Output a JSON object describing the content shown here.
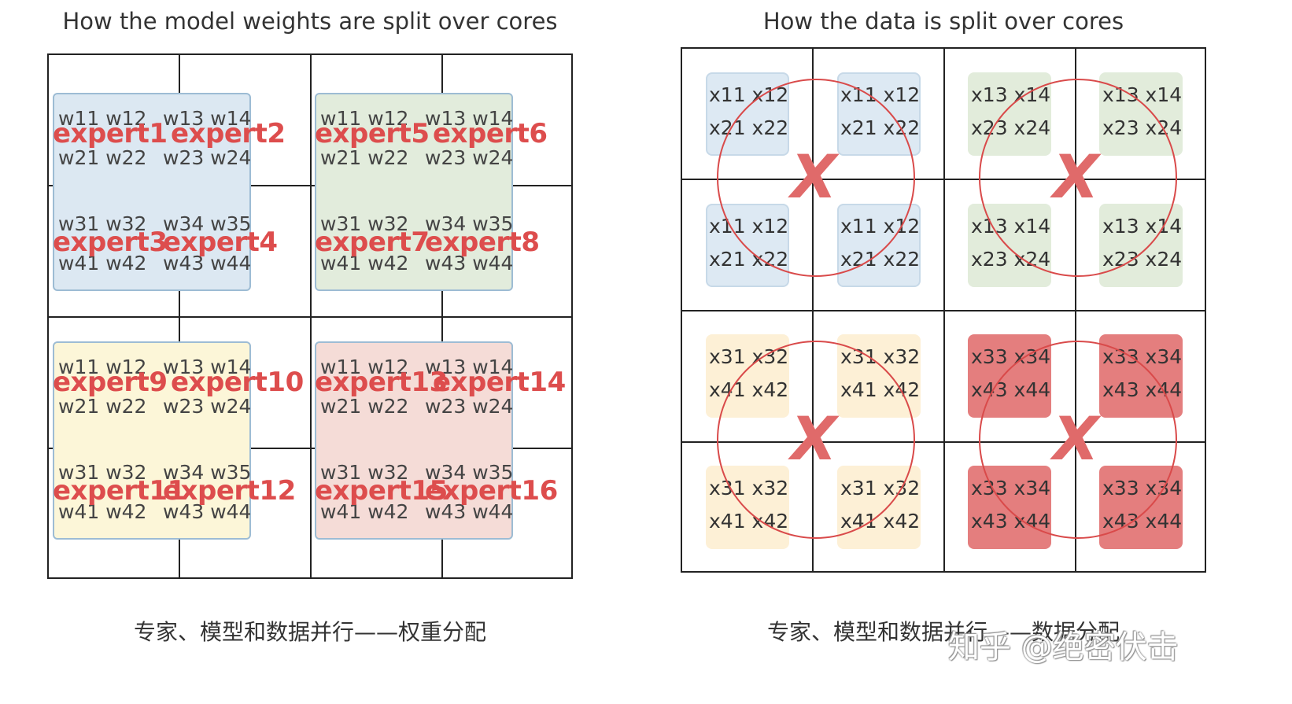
{
  "left": {
    "title": "How the model weights are split over cores",
    "caption": "专家、模型和数据并行——权重分配",
    "blocks": [
      {
        "color": "#dce8f2",
        "tl": "w11 w12",
        "tr": "w13 w14",
        "bl": "w21 w22",
        "br": "w23 w24",
        "e1": "expert1",
        "e2": "expert2",
        "tl2": "w31 w32",
        "tr2": "w34 w35",
        "bl2": "w41 w42",
        "br2": "w43 w44",
        "e3": "expert3",
        "e4": "expert4"
      },
      {
        "color": "#e2ecdc",
        "tl": "w11 w12",
        "tr": "w13 w14",
        "bl": "w21 w22",
        "br": "w23 w24",
        "e1": "expert5",
        "e2": "expert6",
        "tl2": "w31 w32",
        "tr2": "w34 w35",
        "bl2": "w41 w42",
        "br2": "w43 w44",
        "e3": "expert7",
        "e4": "expert8"
      },
      {
        "color": "#fcf6d8",
        "tl": "w11 w12",
        "tr": "w13 w14",
        "bl": "w21 w22",
        "br": "w23 w24",
        "e1": "expert9",
        "e2": "expert10",
        "tl2": "w31 w32",
        "tr2": "w34 w35",
        "bl2": "w41 w42",
        "br2": "w43 w44",
        "e3": "expert11",
        "e4": "expert12"
      },
      {
        "color": "#f5dcd7",
        "tl": "w11 w12",
        "tr": "w13 w14",
        "bl": "w21 w22",
        "br": "w23 w24",
        "e1": "expert13",
        "e2": "expert14",
        "tl2": "w31 w32",
        "tr2": "w34 w35",
        "bl2": "w41 w42",
        "br2": "w43 w44",
        "e3": "expert15",
        "e4": "expert16"
      }
    ]
  },
  "right": {
    "title": "How the data is split over cores",
    "caption": "专家、模型和数据并行——数据分配",
    "cross_symbol": "X",
    "quadrants": [
      {
        "color": "blue",
        "line1": "x11 x12",
        "line2": "x21 x22"
      },
      {
        "color": "green",
        "line1": "x13 x14",
        "line2": "x23 x24"
      },
      {
        "color": "yellow",
        "line1": "x31 x32",
        "line2": "x41 x42"
      },
      {
        "color": "red",
        "line1": "x33 x34",
        "line2": "x43 x44"
      }
    ]
  },
  "watermark": "知乎 @绝密伏击"
}
